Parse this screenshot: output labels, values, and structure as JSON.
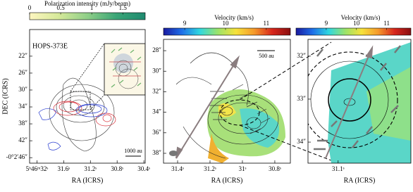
{
  "chart_data": [
    {
      "type": "map",
      "title": "Polarization intensity (mJy/beam)",
      "xlabel": "RA (ICRS)",
      "ylabel": "DEC (ICRS)",
      "xlim": [
        32.11,
        30.38
      ],
      "ylim": [
        47.3,
        15.7
      ],
      "xticks": [
        {
          "value": 32,
          "label": "5ʰ46ᵐ32ˢ"
        },
        {
          "value": 31.6,
          "label": "31.6ˢ"
        },
        {
          "value": 31.2,
          "label": "31.2ˢ"
        },
        {
          "value": 30.8,
          "label": "30.8ˢ"
        },
        {
          "value": 30.4,
          "label": "30.4ˢ"
        }
      ],
      "yticks": [
        {
          "value": 22,
          "label": "22″"
        },
        {
          "value": 26,
          "label": "26″"
        },
        {
          "value": 30,
          "label": "30″"
        },
        {
          "value": 34,
          "label": "34″"
        },
        {
          "value": 38,
          "label": "38″"
        },
        {
          "value": 42,
          "label": "42″"
        },
        {
          "value": 46,
          "label": "-0°2′46″"
        }
      ],
      "colorbar": {
        "lim": [
          0,
          1.86
        ],
        "ticks": [
          0,
          0.5,
          1,
          1.5
        ],
        "colors": [
          "#fdf6c0",
          "#d6e99a",
          "#8fcf88",
          "#3aa577",
          "#1f8a70"
        ]
      },
      "annotations": [
        "HOPS-373E",
        "1000 au"
      ]
    },
    {
      "type": "map",
      "title": "Velocity (km/s)",
      "xlabel": "RA (ICRS)",
      "xlim": [
        31.487,
        30.704
      ],
      "ylim": [
        38.96,
        26.9
      ],
      "xticks": [
        {
          "value": 31.4,
          "label": "31.4ˢ"
        },
        {
          "value": 31.2,
          "label": "31.2ˢ"
        },
        {
          "value": 31,
          "label": "31ˢ"
        },
        {
          "value": 30.8,
          "label": "30.8ˢ"
        }
      ],
      "yticks": [
        {
          "value": 28,
          "label": "28″"
        },
        {
          "value": 30,
          "label": "30″"
        },
        {
          "value": 32,
          "label": "32″"
        },
        {
          "value": 34,
          "label": "34″"
        },
        {
          "value": 36,
          "label": "36″"
        },
        {
          "value": 38,
          "label": "38″"
        }
      ],
      "colorbar": {
        "lim": [
          8.48,
          11.59
        ],
        "ticks": [
          9,
          10,
          11
        ],
        "colors": [
          "#1a1aa0",
          "#1e6ee8",
          "#2fd8e0",
          "#9be36a",
          "#f6e23a",
          "#f59a2a",
          "#d8261c",
          "#8a0f10"
        ]
      },
      "annotations": [
        "500 au"
      ]
    },
    {
      "type": "map",
      "title": "Velocity (km/s)",
      "xlabel": "RA (ICRS)",
      "xlim": [
        31.141,
        31.001
      ],
      "ylim": [
        34.49,
        31.61
      ],
      "xticks": [
        {
          "value": 31.1,
          "label": "31.1ˢ"
        }
      ],
      "yticks": [
        {
          "value": 32,
          "label": "32″"
        },
        {
          "value": 33,
          "label": "33″"
        },
        {
          "value": 34,
          "label": "34″"
        }
      ],
      "colorbar": {
        "lim": [
          8.0,
          11.8
        ],
        "ticks": [
          9,
          10,
          11
        ],
        "colors": [
          "#1a1aa0",
          "#1e6ee8",
          "#2fd8e0",
          "#9be36a",
          "#f6e23a",
          "#f59a2a",
          "#d8261c",
          "#8a0f10"
        ]
      }
    }
  ]
}
